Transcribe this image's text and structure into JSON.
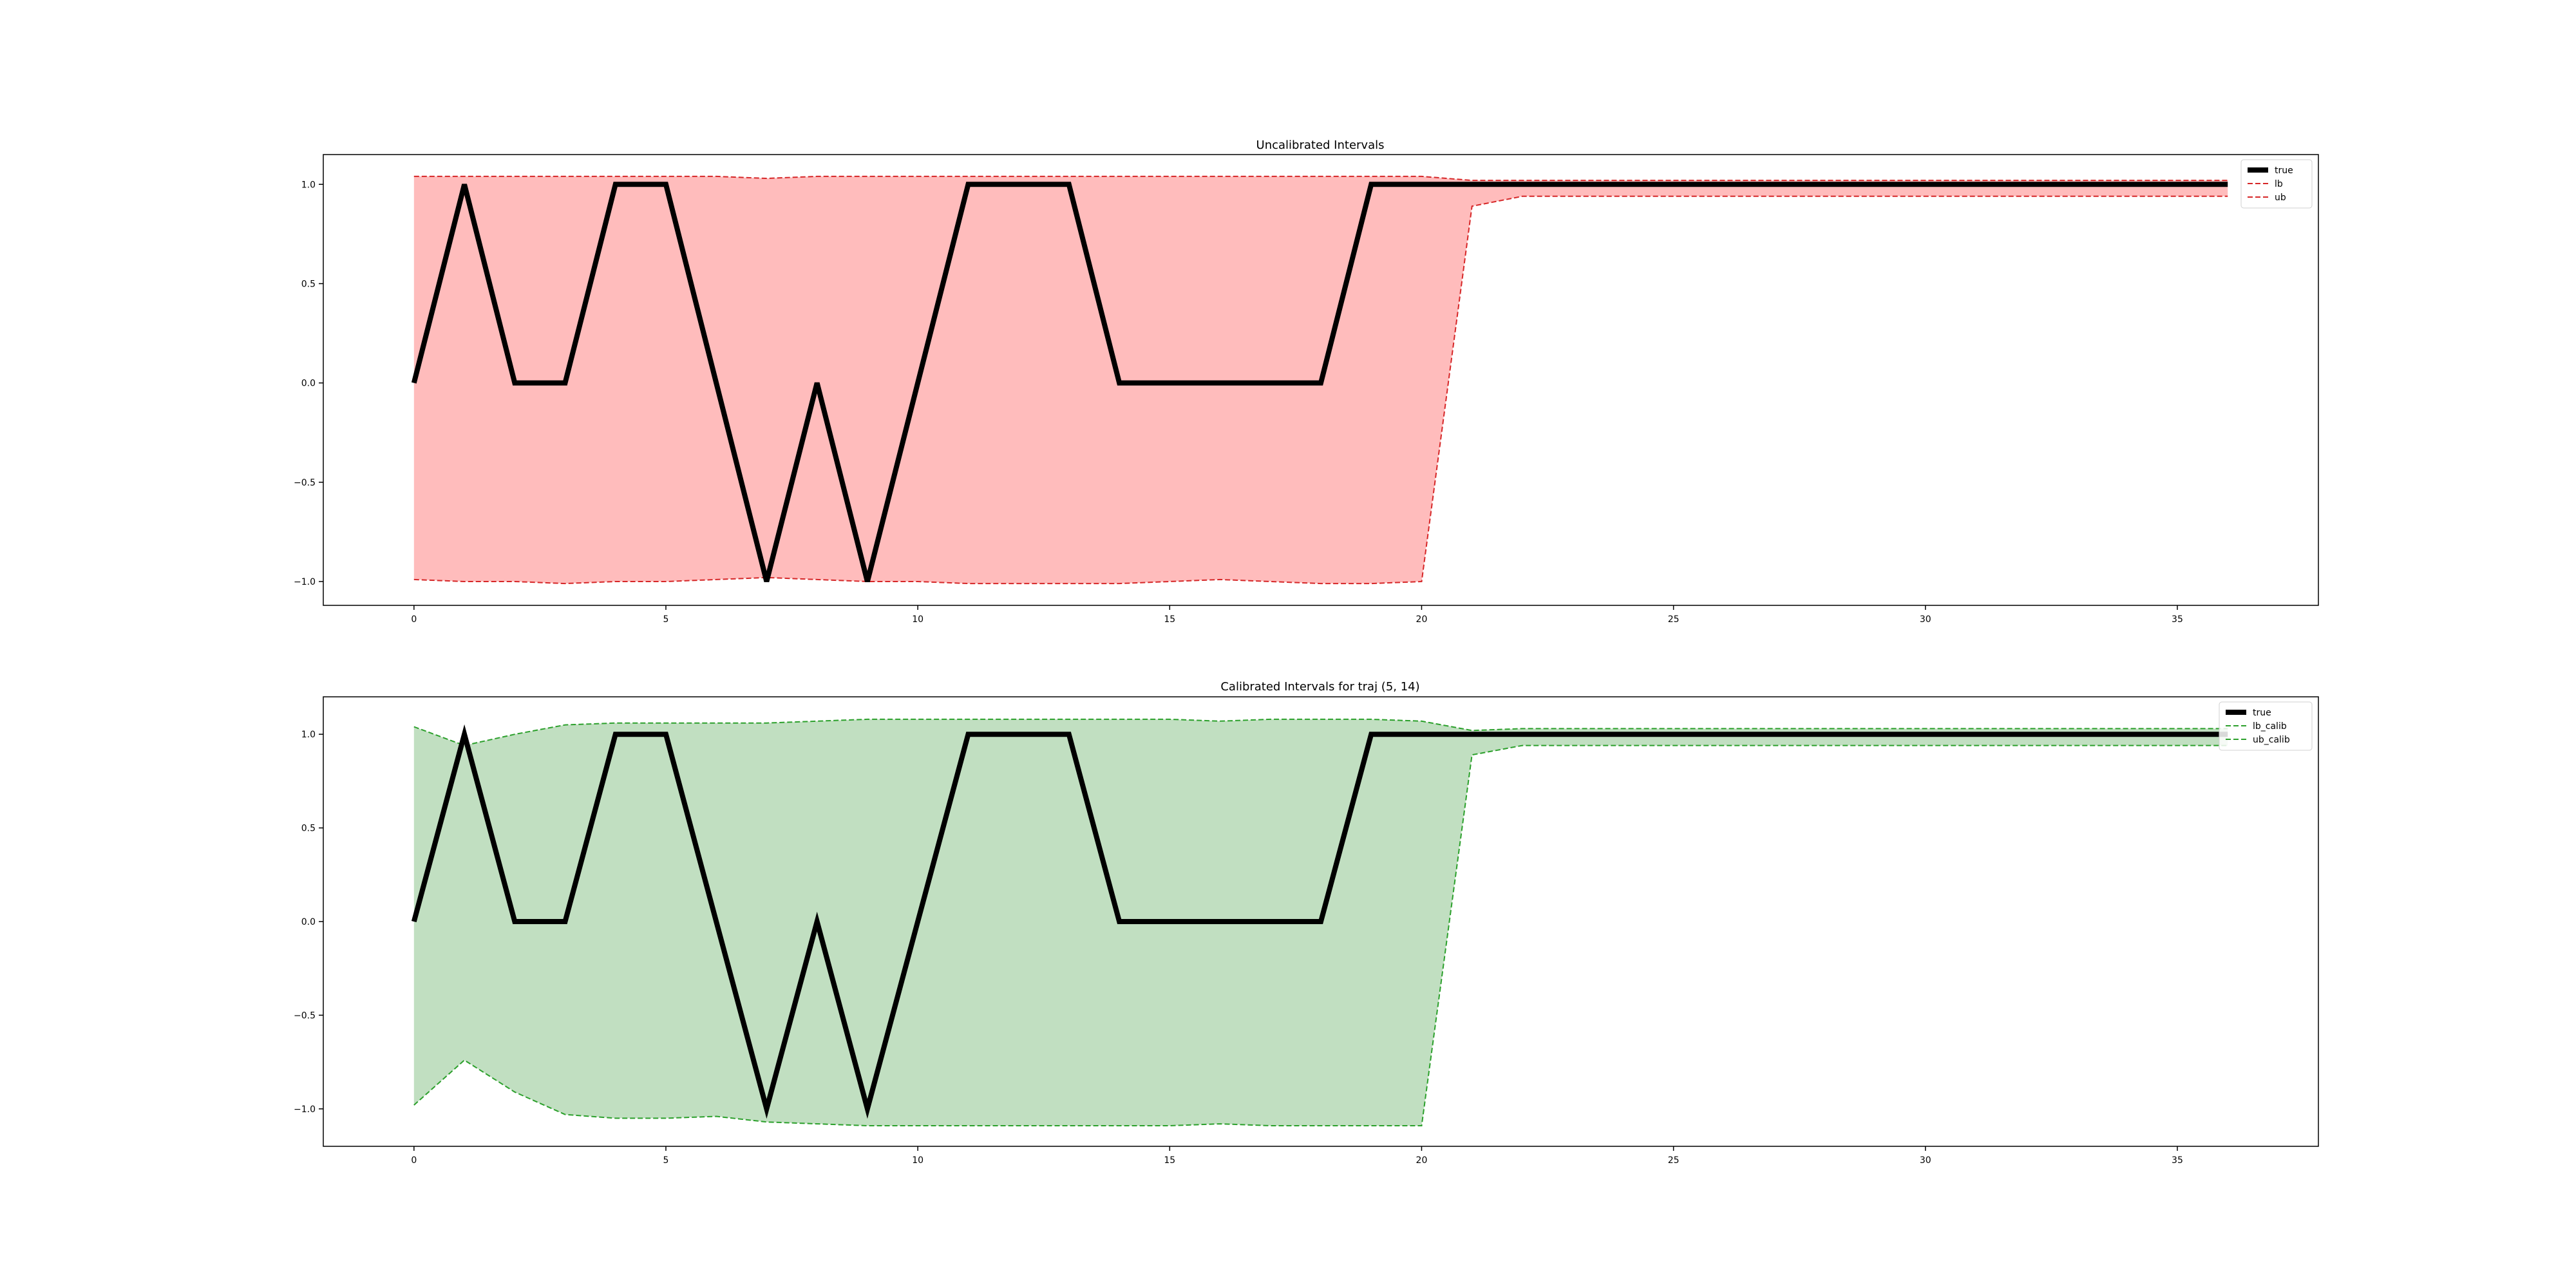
{
  "chart_data": [
    {
      "type": "line",
      "title": "Uncalibrated Intervals",
      "xlabel": "",
      "ylabel": "",
      "xlim": [
        -1.8,
        37.8
      ],
      "ylim": [
        -1.12,
        1.15
      ],
      "x_ticks": [
        0,
        5,
        10,
        15,
        20,
        25,
        30,
        35
      ],
      "y_ticks": [
        -1.0,
        -0.5,
        0.0,
        0.5,
        1.0
      ],
      "y_tick_labels": [
        "−1.0",
        "−0.5",
        "0.0",
        "0.5",
        "1.0"
      ],
      "grid": false,
      "legend_position": "top-right",
      "fill_color": "#ffbcbc",
      "x": [
        0,
        1,
        2,
        3,
        4,
        5,
        6,
        7,
        8,
        9,
        10,
        11,
        12,
        13,
        14,
        15,
        16,
        17,
        18,
        19,
        20,
        21,
        22,
        23,
        24,
        25,
        26,
        27,
        28,
        29,
        30,
        31,
        32,
        33,
        34,
        35,
        36
      ],
      "series": [
        {
          "name": "true",
          "color": "#000000",
          "style": "solid",
          "values": [
            0,
            1,
            0,
            0,
            1,
            1,
            0,
            -1,
            0,
            -1,
            0,
            1,
            1,
            1,
            0,
            0,
            0,
            0,
            0,
            1,
            1,
            1,
            1,
            1,
            1,
            1,
            1,
            1,
            1,
            1,
            1,
            1,
            1,
            1,
            1,
            1,
            1
          ]
        },
        {
          "name": "lb",
          "color": "#d62728",
          "style": "dashed",
          "values": [
            -0.99,
            -1.0,
            -1.0,
            -1.01,
            -1.0,
            -1.0,
            -0.99,
            -0.98,
            -0.99,
            -1.0,
            -1.0,
            -1.01,
            -1.01,
            -1.01,
            -1.01,
            -1.0,
            -0.99,
            -1.0,
            -1.01,
            -1.01,
            -1.0,
            0.89,
            0.94,
            0.94,
            0.94,
            0.94,
            0.94,
            0.94,
            0.94,
            0.94,
            0.94,
            0.94,
            0.94,
            0.94,
            0.94,
            0.94,
            0.94
          ]
        },
        {
          "name": "ub",
          "color": "#d62728",
          "style": "dashed",
          "values": [
            1.04,
            1.04,
            1.04,
            1.04,
            1.04,
            1.04,
            1.04,
            1.03,
            1.04,
            1.04,
            1.04,
            1.04,
            1.04,
            1.04,
            1.04,
            1.04,
            1.04,
            1.04,
            1.04,
            1.04,
            1.04,
            1.02,
            1.02,
            1.02,
            1.02,
            1.02,
            1.02,
            1.02,
            1.02,
            1.02,
            1.02,
            1.02,
            1.02,
            1.02,
            1.02,
            1.02,
            1.02
          ]
        }
      ]
    },
    {
      "type": "line",
      "title": "Calibrated Intervals for traj (5, 14)",
      "xlabel": "",
      "ylabel": "",
      "xlim": [
        -1.8,
        37.8
      ],
      "ylim": [
        -1.2,
        1.2
      ],
      "x_ticks": [
        0,
        5,
        10,
        15,
        20,
        25,
        30,
        35
      ],
      "y_ticks": [
        -1.0,
        -0.5,
        0.0,
        0.5,
        1.0
      ],
      "y_tick_labels": [
        "−1.0",
        "−0.5",
        "0.0",
        "0.5",
        "1.0"
      ],
      "grid": false,
      "legend_position": "top-right",
      "fill_color": "#c1dfc1",
      "x": [
        0,
        1,
        2,
        3,
        4,
        5,
        6,
        7,
        8,
        9,
        10,
        11,
        12,
        13,
        14,
        15,
        16,
        17,
        18,
        19,
        20,
        21,
        22,
        23,
        24,
        25,
        26,
        27,
        28,
        29,
        30,
        31,
        32,
        33,
        34,
        35,
        36
      ],
      "series": [
        {
          "name": "true",
          "color": "#000000",
          "style": "solid",
          "values": [
            0,
            1,
            0,
            0,
            1,
            1,
            0,
            -1,
            0,
            -1,
            0,
            1,
            1,
            1,
            0,
            0,
            0,
            0,
            0,
            1,
            1,
            1,
            1,
            1,
            1,
            1,
            1,
            1,
            1,
            1,
            1,
            1,
            1,
            1,
            1,
            1,
            1
          ]
        },
        {
          "name": "lb_calib",
          "color": "#2ca02c",
          "style": "dashed",
          "values": [
            -0.98,
            -0.74,
            -0.91,
            -1.03,
            -1.05,
            -1.05,
            -1.04,
            -1.07,
            -1.08,
            -1.09,
            -1.09,
            -1.09,
            -1.09,
            -1.09,
            -1.09,
            -1.09,
            -1.08,
            -1.09,
            -1.09,
            -1.09,
            -1.09,
            0.89,
            0.94,
            0.94,
            0.94,
            0.94,
            0.94,
            0.94,
            0.94,
            0.94,
            0.94,
            0.94,
            0.94,
            0.94,
            0.94,
            0.94,
            0.94
          ]
        },
        {
          "name": "ub_calib",
          "color": "#2ca02c",
          "style": "dashed",
          "values": [
            1.04,
            0.94,
            1.0,
            1.05,
            1.06,
            1.06,
            1.06,
            1.06,
            1.07,
            1.08,
            1.08,
            1.08,
            1.08,
            1.08,
            1.08,
            1.08,
            1.07,
            1.08,
            1.08,
            1.08,
            1.07,
            1.02,
            1.03,
            1.03,
            1.03,
            1.03,
            1.03,
            1.03,
            1.03,
            1.03,
            1.03,
            1.03,
            1.03,
            1.03,
            1.03,
            1.03,
            1.03
          ]
        }
      ]
    }
  ]
}
